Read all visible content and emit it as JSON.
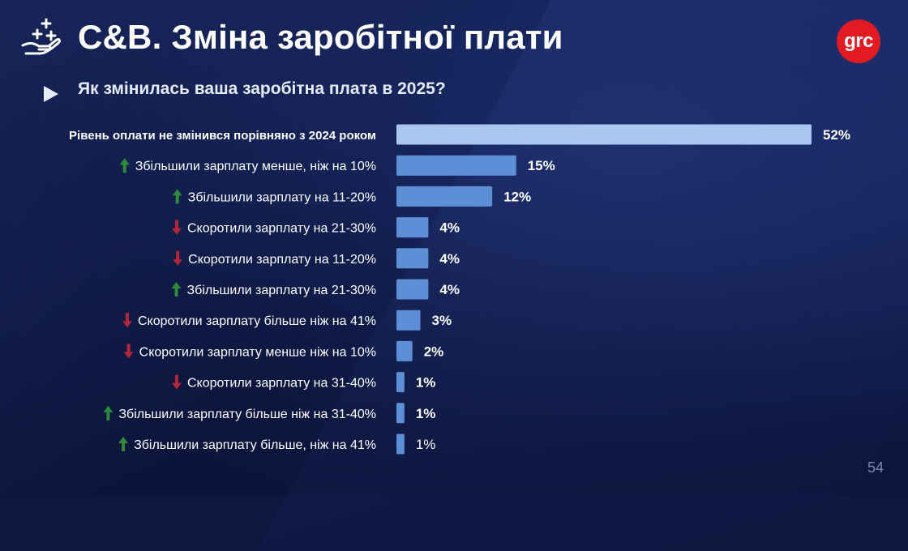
{
  "header": {
    "title": "C&B. Зміна заробітної плати",
    "subtitle": "Як змінилась ваша заробітна плата в 2025?",
    "logo_text": "grc",
    "page_number": "54"
  },
  "colors": {
    "highlight_bar": "#a9c6ee",
    "bar": "#5c8fd6",
    "arrow_up": "#2e8b3a",
    "arrow_down": "#b3263a",
    "logo": "#e21b23"
  },
  "chart_data": {
    "type": "bar",
    "orientation": "horizontal",
    "categories": [
      "Рівень оплати не змінився порівняно з 2024 роком",
      "Збільшили зарплату менше, ніж на 10%",
      "Збільшили зарплату на 11-20%",
      "Скоротили зарплату на 21-30%",
      "Скоротили зарплату на 11-20%",
      "Збільшили зарплату на 21-30%",
      "Скоротили зарплату більше ніж на 41%",
      "Скоротили зарплату менше ніж на 10%",
      "Скоротили зарплату на 31-40%",
      "Збільшили зарплату більше ніж на 31-40%",
      "Збільшили зарплату більше, ніж на 41%"
    ],
    "values": [
      52,
      15,
      12,
      4,
      4,
      4,
      3,
      2,
      1,
      1,
      1
    ],
    "value_labels": [
      "52%",
      "15%",
      "12%",
      "4%",
      "4%",
      "4%",
      "3%",
      "2%",
      "1%",
      "1%",
      "1%"
    ],
    "direction": [
      "none",
      "up",
      "up",
      "down",
      "down",
      "up",
      "down",
      "down",
      "down",
      "up",
      "up"
    ],
    "title": "Як змінилась ваша заробітна плата в 2025?",
    "xlabel": "",
    "ylabel": "",
    "xlim": [
      0,
      52
    ],
    "grid": false,
    "legend": "none"
  }
}
